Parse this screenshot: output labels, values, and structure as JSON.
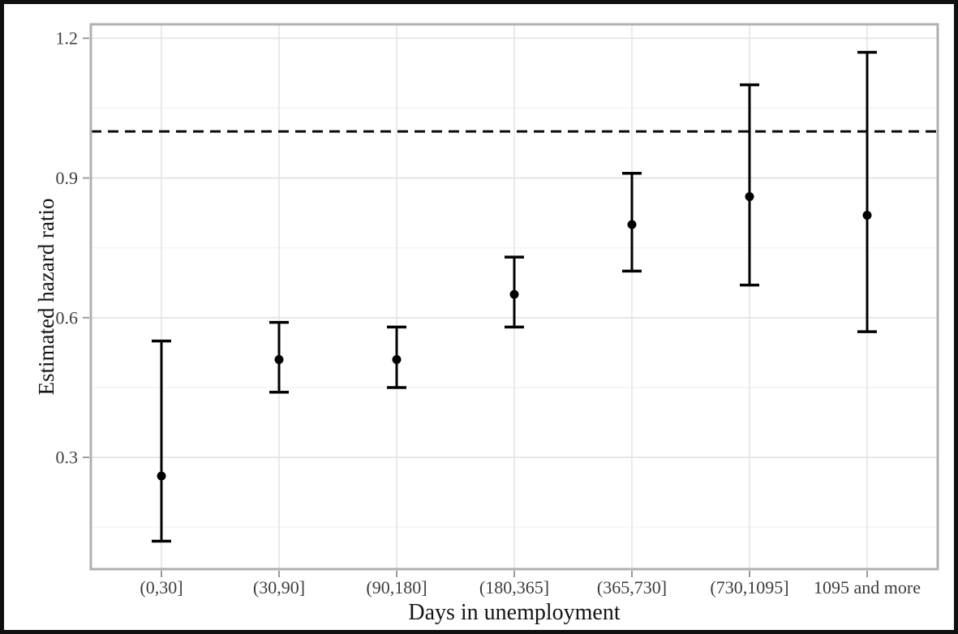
{
  "chart_data": {
    "type": "scatter",
    "subtype": "point-estimate-with-error-bars",
    "title": "",
    "xlabel": "Days in unemployment",
    "ylabel": "Estimated hazard ratio",
    "categories": [
      "(0,30]",
      "(30,90]",
      "(90,180]",
      "(180,365]",
      "(365,730]",
      "(730,1095]",
      "1095 and more"
    ],
    "series": [
      {
        "name": "estimate",
        "values": [
          0.26,
          0.51,
          0.51,
          0.65,
          0.8,
          0.86,
          0.82
        ]
      },
      {
        "name": "ci_lower",
        "values": [
          0.12,
          0.44,
          0.45,
          0.58,
          0.7,
          0.67,
          0.57
        ]
      },
      {
        "name": "ci_upper",
        "values": [
          0.55,
          0.59,
          0.58,
          0.73,
          0.91,
          1.1,
          1.17
        ]
      }
    ],
    "reference_line": {
      "value": 1.0,
      "style": "dashed"
    },
    "ylim": [
      0.06,
      1.23
    ],
    "yticks": [
      0.3,
      0.6,
      0.9,
      1.2
    ],
    "ytick_labels": [
      "0.3",
      "0.6",
      "0.9",
      "1.2"
    ],
    "yticks_minor": [
      0.15,
      0.45,
      0.75,
      1.05
    ],
    "grid": "on",
    "legend": "none",
    "colors": {
      "points": "#000000",
      "error_bars": "#000000",
      "reference_line": "#0a0a0a",
      "grid_major": "#e4e4e4",
      "grid_minor": "#f0f0f0",
      "plot_border": "#b0b0b0",
      "tick_marks": "#9a9a9a",
      "tick_text": "#3d3d3d",
      "title_text": "#141414",
      "outer_frame": "#101010",
      "background": "#ffffff"
    }
  }
}
